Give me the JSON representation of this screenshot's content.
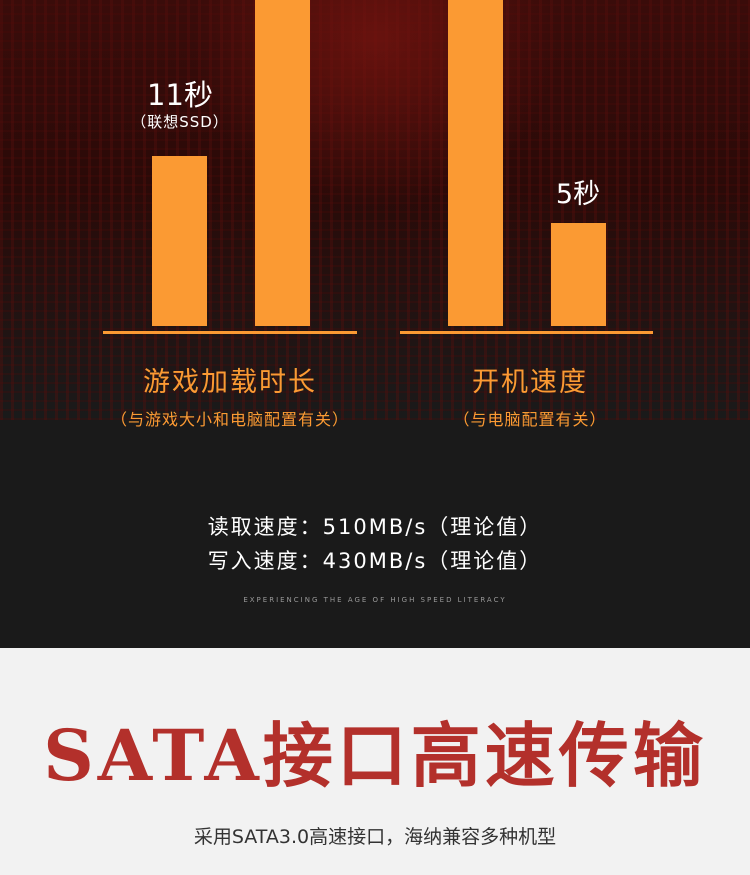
{
  "chart_data": [
    {
      "type": "bar",
      "category": "游戏加载时长",
      "note": "（与游戏大小和电脑配置有关）",
      "values": [
        11,
        null
      ],
      "data_labels": [
        "11秒",
        ""
      ],
      "sub_labels": [
        "（联想SSD）",
        ""
      ]
    },
    {
      "type": "bar",
      "category": "开机速度",
      "note": "（与电脑配置有关）",
      "values": [
        null,
        5
      ],
      "data_labels": [
        "",
        "5秒"
      ]
    }
  ],
  "colors": {
    "bar": "#fb9a33",
    "title": "#b3302b"
  },
  "specs": {
    "read": "读取速度：510MB/s（理论值）",
    "write": "写入速度：430MB/s（理论值）"
  },
  "tagline": "EXPERIENCING THE AGE OF HIGH SPEED LITERACY",
  "feature": {
    "title": "SATA接口高速传输",
    "desc": "采用SATA3.0高速接口，海纳兼容多种机型"
  }
}
